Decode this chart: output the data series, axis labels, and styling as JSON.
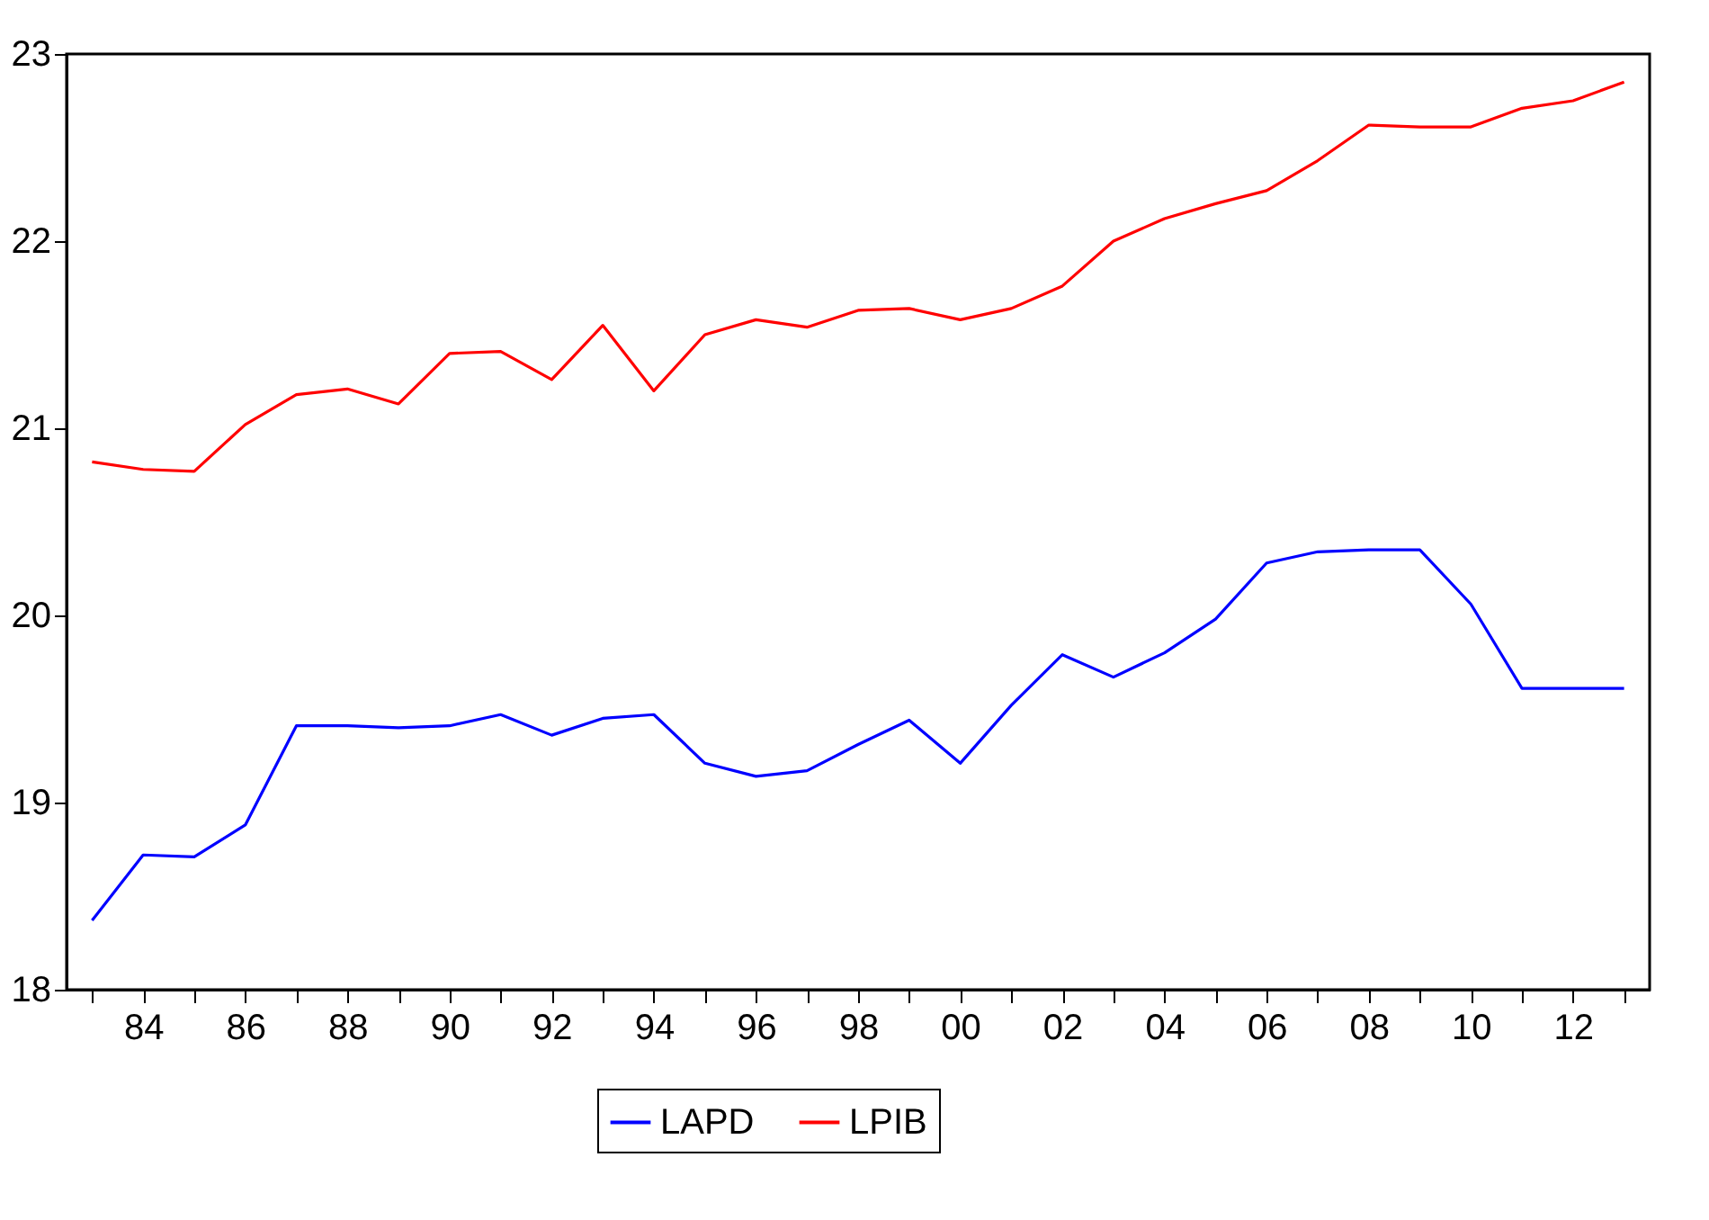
{
  "chart_data": {
    "type": "line",
    "x": [
      1983,
      1984,
      1985,
      1986,
      1987,
      1988,
      1989,
      1990,
      1991,
      1992,
      1993,
      1994,
      1995,
      1996,
      1997,
      1998,
      1999,
      2000,
      2001,
      2002,
      2003,
      2004,
      2005,
      2006,
      2007,
      2008,
      2009,
      2010,
      2011,
      2012,
      2013
    ],
    "series": [
      {
        "name": "LAPD",
        "color": "#0000ff",
        "values": [
          18.37,
          18.72,
          18.71,
          18.88,
          19.41,
          19.41,
          19.4,
          19.41,
          19.47,
          19.36,
          19.45,
          19.47,
          19.21,
          19.14,
          19.17,
          19.31,
          19.44,
          19.21,
          19.52,
          19.79,
          19.67,
          19.8,
          19.98,
          20.28,
          20.34,
          20.35,
          20.35,
          20.06,
          19.61,
          19.61,
          19.61
        ]
      },
      {
        "name": "LPIB",
        "color": "#ff0000",
        "values": [
          20.82,
          20.78,
          20.77,
          21.02,
          21.18,
          21.21,
          21.13,
          21.4,
          21.41,
          21.26,
          21.55,
          21.2,
          21.5,
          21.58,
          21.54,
          21.63,
          21.64,
          21.58,
          21.64,
          21.76,
          22.0,
          22.12,
          22.2,
          22.27,
          22.43,
          22.62,
          22.61,
          22.61,
          22.71,
          22.75,
          22.85
        ]
      }
    ],
    "xlim": [
      1982.5,
      2013.5
    ],
    "xticks": [
      {
        "value": 1983,
        "label": null
      },
      {
        "value": 1984,
        "label": "84"
      },
      {
        "value": 1985,
        "label": null
      },
      {
        "value": 1986,
        "label": "86"
      },
      {
        "value": 1987,
        "label": null
      },
      {
        "value": 1988,
        "label": "88"
      },
      {
        "value": 1989,
        "label": null
      },
      {
        "value": 1990,
        "label": "90"
      },
      {
        "value": 1991,
        "label": null
      },
      {
        "value": 1992,
        "label": "92"
      },
      {
        "value": 1993,
        "label": null
      },
      {
        "value": 1994,
        "label": "94"
      },
      {
        "value": 1995,
        "label": null
      },
      {
        "value": 1996,
        "label": "96"
      },
      {
        "value": 1997,
        "label": null
      },
      {
        "value": 1998,
        "label": "98"
      },
      {
        "value": 1999,
        "label": null
      },
      {
        "value": 2000,
        "label": "00"
      },
      {
        "value": 2001,
        "label": null
      },
      {
        "value": 2002,
        "label": "02"
      },
      {
        "value": 2003,
        "label": null
      },
      {
        "value": 2004,
        "label": "04"
      },
      {
        "value": 2005,
        "label": null
      },
      {
        "value": 2006,
        "label": "06"
      },
      {
        "value": 2007,
        "label": null
      },
      {
        "value": 2008,
        "label": "08"
      },
      {
        "value": 2009,
        "label": null
      },
      {
        "value": 2010,
        "label": "10"
      },
      {
        "value": 2011,
        "label": null
      },
      {
        "value": 2012,
        "label": "12"
      },
      {
        "value": 2013,
        "label": null
      }
    ],
    "ylim": [
      18,
      23
    ],
    "yticks": [
      18,
      19,
      20,
      21,
      22,
      23
    ],
    "grid": false,
    "legend": "bottom"
  }
}
